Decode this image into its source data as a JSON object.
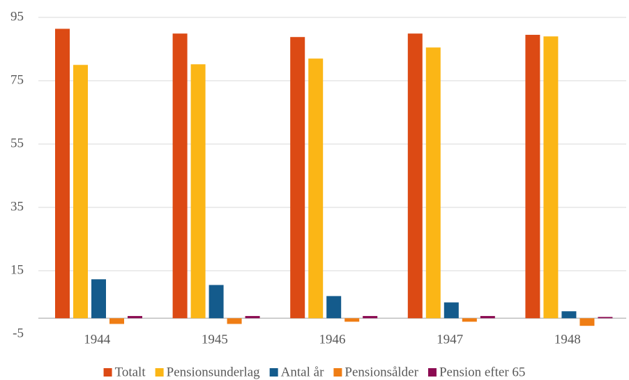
{
  "chart_data": {
    "type": "bar",
    "categories": [
      "1944",
      "1945",
      "1946",
      "1947",
      "1948"
    ],
    "series": [
      {
        "name": "Totalt",
        "color": "#dc4a14",
        "values": [
          91.4,
          89.9,
          88.8,
          89.9,
          89.5
        ]
      },
      {
        "name": "Pensionsunderlag",
        "color": "#fbb616",
        "values": [
          80,
          80.2,
          82,
          85.5,
          89
        ]
      },
      {
        "name": "Antal år",
        "color": "#145b8c",
        "values": [
          12.3,
          10.5,
          7,
          5,
          2.2
        ]
      },
      {
        "name": "Pensionsålder",
        "color": "#ef7d14",
        "values": [
          -1.8,
          -1.8,
          -1.1,
          -1.1,
          -2.4
        ]
      },
      {
        "name": "Pension efter 65",
        "color": "#8c0b52",
        "values": [
          0.7,
          0.7,
          0.7,
          0.7,
          0.4
        ]
      }
    ],
    "ylim": [
      -5,
      95
    ],
    "yticks": [
      -5,
      15,
      35,
      55,
      75,
      95
    ],
    "grid": true
  }
}
